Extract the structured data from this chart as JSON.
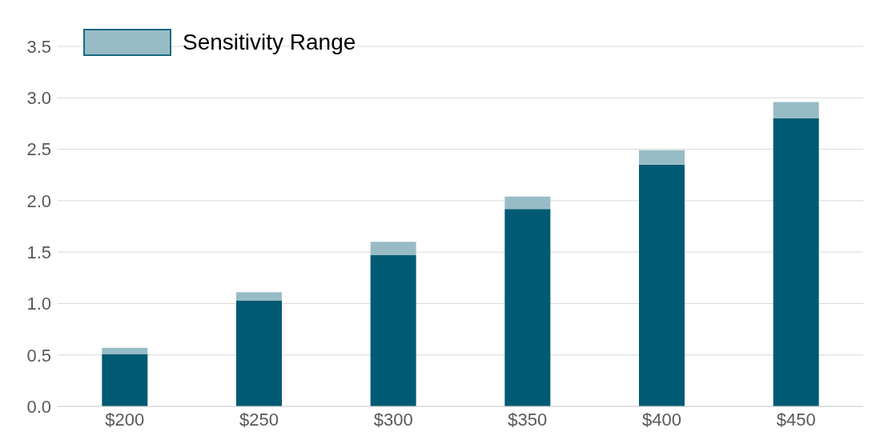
{
  "chart_data": {
    "type": "bar",
    "stacked": true,
    "categories": [
      "$200",
      "$250",
      "$300",
      "$350",
      "$400",
      "$450"
    ],
    "series": [
      {
        "color": "#005a73",
        "values": [
          0.51,
          1.03,
          1.47,
          1.92,
          2.35,
          2.8
        ]
      },
      {
        "name": "Sensitivity Range",
        "color": "#98bcc6",
        "values": [
          0.06,
          0.08,
          0.13,
          0.12,
          0.14,
          0.16
        ]
      }
    ],
    "ylim": [
      0,
      3.5
    ],
    "yticks": [
      {
        "value": 0,
        "label": "0.0"
      },
      {
        "value": 0.5,
        "label": "0.5"
      },
      {
        "value": 1,
        "label": "1.0"
      },
      {
        "value": 1.5,
        "label": "1.5"
      },
      {
        "value": 2,
        "label": "2.0"
      },
      {
        "value": 2.5,
        "label": "2.5"
      },
      {
        "value": 3,
        "label": "3.0"
      },
      {
        "value": 3.5,
        "label": "3.5"
      }
    ],
    "grid": "y",
    "legend": "top left"
  }
}
